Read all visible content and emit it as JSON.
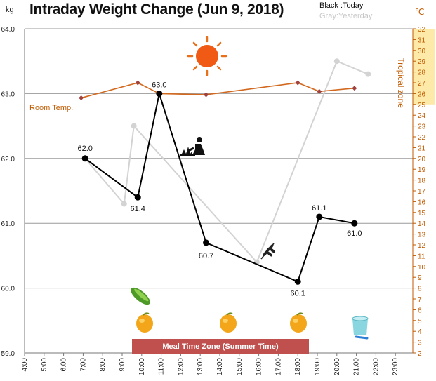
{
  "title": "Intraday Weight Change (Jun 9, 2018)",
  "units": {
    "left": "kg",
    "right": "℃"
  },
  "legend": {
    "today": "Black :Today",
    "yesterday": "Gray:Yesterday"
  },
  "annotations": {
    "room_temp": "Room Temp.",
    "tropical_zone": "Tropical zone",
    "meal_time_zone": "Meal Time Zone  (Summer Time)"
  },
  "colors": {
    "today": "#000000",
    "yesterday": "#d3d3d3",
    "temperature": "#d2691e",
    "temperature_marker": "#a0413c",
    "tropical_band": "#fde9a8",
    "meal_bar": "#c0504d",
    "axis_right": "#c05a00"
  },
  "icons": [
    "sun-icon",
    "gardening-person-icon",
    "wheat-icon",
    "cucumber-icon",
    "mango-icon",
    "bucket-icon"
  ],
  "chart_data": {
    "type": "line",
    "x_ticks": [
      "4:00",
      "5:00",
      "6:00",
      "7:00",
      "8:00",
      "9:00",
      "10:00",
      "11:00",
      "12:00",
      "13:00",
      "14:00",
      "15:00",
      "16:00",
      "17:00",
      "18:00",
      "19:00",
      "20:00",
      "21:00",
      "22:00",
      "23:00"
    ],
    "xlim": [
      4,
      24
    ],
    "ylim": [
      59.0,
      64.0
    ],
    "y_ticks": [
      "59.0",
      "60.0",
      "61.0",
      "62.0",
      "63.0",
      "64.0"
    ],
    "y2lim": [
      2,
      32
    ],
    "y2_ticks": [
      "2",
      "3",
      "4",
      "5",
      "6",
      "7",
      "8",
      "9",
      "10",
      "11",
      "12",
      "13",
      "14",
      "15",
      "16",
      "17",
      "18",
      "19",
      "20",
      "21",
      "22",
      "23",
      "24",
      "25",
      "26",
      "27",
      "28",
      "29",
      "30",
      "31",
      "32"
    ],
    "tropical_zone": [
      25,
      32
    ],
    "grid": "horizontal",
    "series": [
      {
        "name": "Today",
        "axis": "left",
        "points": [
          {
            "x": 7.1,
            "y": 62.0,
            "label": "62.0"
          },
          {
            "x": 9.8,
            "y": 61.4,
            "label": "61.4"
          },
          {
            "x": 10.9,
            "y": 63.0,
            "label": "63.0"
          },
          {
            "x": 13.3,
            "y": 60.7,
            "label": "60.7"
          },
          {
            "x": 18.0,
            "y": 60.1,
            "label": "60.1"
          },
          {
            "x": 19.1,
            "y": 61.1,
            "label": "61.1"
          },
          {
            "x": 20.9,
            "y": 61.0,
            "label": "61.0"
          }
        ]
      },
      {
        "name": "Yesterday",
        "axis": "left",
        "points": [
          {
            "x": 7.1,
            "y": 62.0
          },
          {
            "x": 9.1,
            "y": 61.3
          },
          {
            "x": 9.6,
            "y": 62.5
          },
          {
            "x": 15.9,
            "y": 60.4
          },
          {
            "x": 20.0,
            "y": 63.5
          },
          {
            "x": 21.6,
            "y": 63.3
          }
        ]
      },
      {
        "name": "Room Temp.",
        "axis": "right",
        "points": [
          {
            "x": 6.9,
            "y": 25.6
          },
          {
            "x": 9.8,
            "y": 27.0
          },
          {
            "x": 10.9,
            "y": 26.0
          },
          {
            "x": 13.3,
            "y": 25.9
          },
          {
            "x": 18.0,
            "y": 27.0
          },
          {
            "x": 19.1,
            "y": 26.2
          },
          {
            "x": 20.9,
            "y": 26.5
          }
        ]
      }
    ],
    "meal_time_zone": [
      9.6,
      18.6
    ]
  }
}
